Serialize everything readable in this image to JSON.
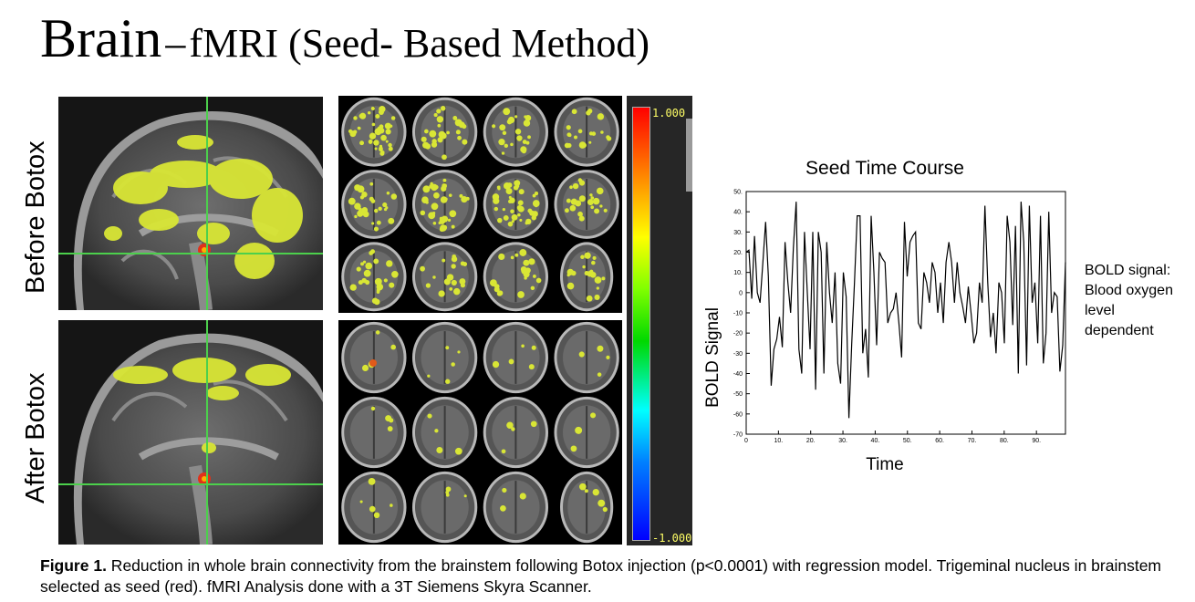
{
  "title": {
    "main": "Brain",
    "dash": "–",
    "sub": "fMRI (Seed- Based Method)"
  },
  "row_labels": {
    "before": "Before Botox",
    "after": "After Botox"
  },
  "colorbar": {
    "max_label": "1.000",
    "min_label": "-1.000"
  },
  "side_note": {
    "lines": [
      "BOLD signal:",
      "Blood oxygen",
      "level",
      "dependent"
    ]
  },
  "caption": {
    "label": "Figure 1.",
    "text": " Reduction in whole brain connectivity from the brainstem following Botox injection (p<0.0001) with regression model. Trigeminal nucleus in brainstem selected as seed (red). fMRI Analysis done with a 3T Siemens Skyra Scanner."
  },
  "chart_data": {
    "type": "line",
    "title": "Seed Time Course",
    "xlabel": "Time",
    "ylabel": "BOLD Signal",
    "xlim": [
      0,
      99
    ],
    "ylim": [
      -70,
      50
    ],
    "x_ticks": [
      0,
      10,
      20,
      30,
      40,
      50,
      60,
      70,
      80,
      90
    ],
    "x_tick_labels": [
      "0",
      "10.",
      "20.",
      "30.",
      "40.",
      "50.",
      "60.",
      "70.",
      "80.",
      "90."
    ],
    "y_ticks": [
      50,
      40,
      30,
      20,
      10,
      0,
      -10,
      -20,
      -30,
      -40,
      -50,
      -60,
      -70
    ],
    "y_tick_labels": [
      "50.",
      "40.",
      "30.",
      "20.",
      "10.",
      "0",
      "-10",
      "-20",
      "-30",
      "-40",
      "-50",
      "-60",
      "-70"
    ],
    "grid": false,
    "series": [
      {
        "values": [
          20,
          21,
          -3,
          28,
          0,
          -5,
          15,
          35,
          8,
          -46,
          -28,
          -23,
          -12,
          -27,
          25,
          5,
          -10,
          22,
          45,
          -28,
          -40,
          30,
          0,
          -28,
          30,
          -48,
          30,
          20,
          -40,
          25,
          0,
          -15,
          10,
          -35,
          -45,
          10,
          -2,
          -62,
          -25,
          5,
          38,
          38,
          -30,
          -18,
          -42,
          38,
          10,
          -26,
          20,
          17,
          15,
          -15,
          -10,
          -8,
          0,
          -15,
          -32,
          35,
          8,
          25,
          28,
          30,
          -15,
          -18,
          10,
          5,
          -5,
          15,
          10,
          -10,
          5,
          -15,
          15,
          25,
          15,
          -5,
          15,
          0,
          -7,
          -15,
          3,
          -10,
          -25,
          -20,
          5,
          -5,
          43,
          5,
          -22,
          -10,
          -30,
          5,
          0,
          -25,
          38,
          25,
          -16,
          33,
          -40,
          45,
          25,
          -36,
          43,
          -5,
          5,
          -25,
          38,
          -35,
          -20,
          40,
          -10,
          0,
          -2,
          -39,
          -26,
          15
        ]
      }
    ]
  }
}
